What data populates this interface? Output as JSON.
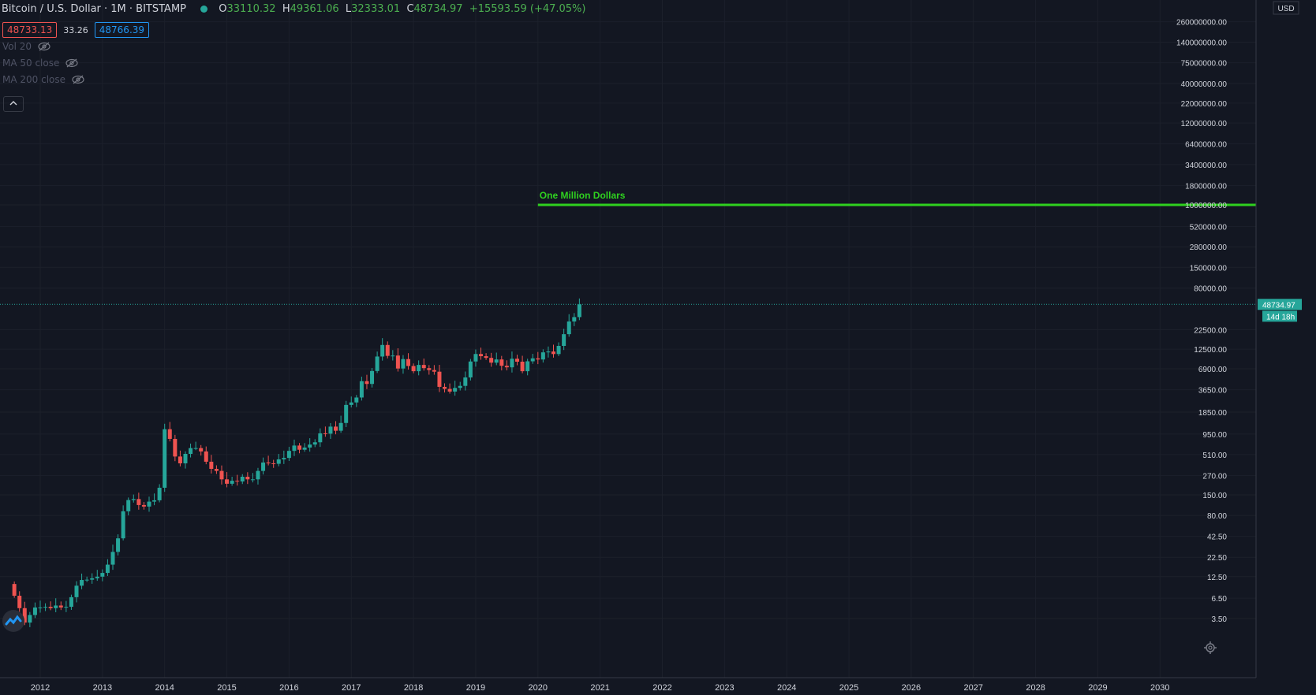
{
  "header": {
    "symbol": "Bitcoin / U.S. Dollar · 1M · BITSTAMP",
    "open_label": "O",
    "open": "33110.32",
    "high_label": "H",
    "high": "49361.06",
    "low_label": "L",
    "low": "32333.01",
    "close_label": "C",
    "close": "48734.97",
    "change": "+15593.59 (+47.05%)"
  },
  "trade": {
    "sell": "48733.13",
    "spread": "33.26",
    "buy": "48766.39"
  },
  "indicators": [
    "Vol 20",
    "MA 50 close",
    "MA 200 close"
  ],
  "colors": {
    "up": "#26a69a",
    "down": "#ef5350",
    "annotation": "#2fd11f",
    "background": "#131722"
  },
  "chart_data": {
    "type": "candlestick",
    "yscale": "log",
    "currency": "USD",
    "last_price_label": "48734.97",
    "countdown": "14d 18h",
    "annotation": {
      "text": "One Million Dollars",
      "value": 1000000,
      "from_year": 2020.0
    },
    "y_ticks": [
      {
        "v": 260000000,
        "l": "260000000.00"
      },
      {
        "v": 140000000,
        "l": "140000000.00"
      },
      {
        "v": 75000000,
        "l": "75000000.00"
      },
      {
        "v": 40000000,
        "l": "40000000.00"
      },
      {
        "v": 22000000,
        "l": "22000000.00"
      },
      {
        "v": 12000000,
        "l": "12000000.00"
      },
      {
        "v": 6400000,
        "l": "6400000.00"
      },
      {
        "v": 3400000,
        "l": "3400000.00"
      },
      {
        "v": 1800000,
        "l": "1800000.00"
      },
      {
        "v": 1000000,
        "l": "1000000.00"
      },
      {
        "v": 520000,
        "l": "520000.00"
      },
      {
        "v": 280000,
        "l": "280000.00"
      },
      {
        "v": 150000,
        "l": "150000.00"
      },
      {
        "v": 80000,
        "l": "80000.00"
      },
      {
        "v": 22500,
        "l": "22500.00"
      },
      {
        "v": 12500,
        "l": "12500.00"
      },
      {
        "v": 6900,
        "l": "6900.00"
      },
      {
        "v": 3650,
        "l": "3650.00"
      },
      {
        "v": 1850,
        "l": "1850.00"
      },
      {
        "v": 950,
        "l": "950.00"
      },
      {
        "v": 510,
        "l": "510.00"
      },
      {
        "v": 270,
        "l": "270.00"
      },
      {
        "v": 150,
        "l": "150.00"
      },
      {
        "v": 80,
        "l": "80.00"
      },
      {
        "v": 42.5,
        "l": "42.50"
      },
      {
        "v": 22.5,
        "l": "22.50"
      },
      {
        "v": 12.5,
        "l": "12.50"
      },
      {
        "v": 6.5,
        "l": "6.50"
      },
      {
        "v": 3.5,
        "l": "3.50"
      }
    ],
    "x_ticks": [
      "2012",
      "2013",
      "2014",
      "2015",
      "2016",
      "2017",
      "2018",
      "2019",
      "2020",
      "2021",
      "2022",
      "2023",
      "2024",
      "2025",
      "2026",
      "2027",
      "2028",
      "2029",
      "2030"
    ],
    "x_range": [
      2011.67,
      2030.55
    ],
    "closes": [
      7.0,
      4.8,
      3.1,
      3.9,
      4.9,
      4.9,
      5.0,
      4.8,
      5.2,
      4.9,
      5.0,
      6.7,
      9.5,
      11.3,
      11.4,
      11.9,
      12.5,
      14.0,
      18.0,
      26.5,
      40.0,
      91.0,
      128.0,
      132.0,
      110.0,
      105.0,
      122.0,
      127.0,
      186.0,
      1100.0,
      820.0,
      480.0,
      390.0,
      520.0,
      620.0,
      620.0,
      560.0,
      410.0,
      330.0,
      310.0,
      240.0,
      210.0,
      230.0,
      225.0,
      260.0,
      240.0,
      240.0,
      310.0,
      400.0,
      390.0,
      385.0,
      440.0,
      460.0,
      570.0,
      670.0,
      590.0,
      630.0,
      690.0,
      740.0,
      970.0,
      960.0,
      1190.0,
      1050.0,
      1330.0,
      2300.0,
      2480.0,
      2880.0,
      4730.0,
      4350.0,
      6440.0,
      10000.0,
      14200.0,
      10200.0,
      10300.0,
      6950.0,
      9250.0,
      7500.0,
      6400.0,
      7750.0,
      7030.0,
      6630.0,
      6310.0,
      3980.0,
      3740.0,
      3450.0,
      3850.0,
      4100.0,
      5300.0,
      8600.0,
      10800.0,
      10100.0,
      9600.0,
      8300.0,
      9150.0,
      7550.0,
      7200.0,
      9350.0,
      8550.0,
      6400.0,
      8650.0,
      9460.0,
      9140.0,
      11350.0,
      11650.0,
      10780.0,
      13800.0,
      19700.0,
      29000.0,
      33100.0,
      48735.0
    ]
  }
}
